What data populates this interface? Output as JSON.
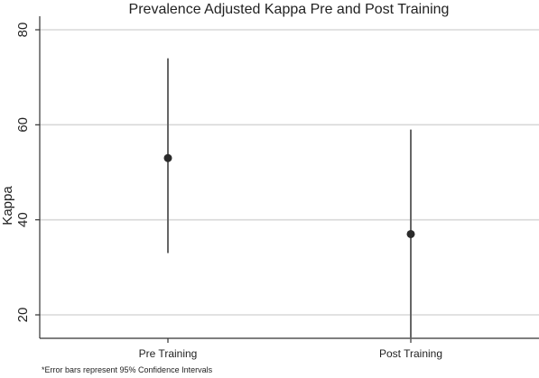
{
  "chart_data": {
    "type": "scatter",
    "title": "Prevalence Adjusted Kappa Pre and Post Training",
    "xlabel": "",
    "ylabel": "Kappa",
    "categories": [
      "Pre Training",
      "Post Training"
    ],
    "values": [
      53,
      37
    ],
    "error_low": [
      33,
      15
    ],
    "error_high": [
      74,
      59
    ],
    "yticks": [
      20,
      40,
      60,
      80
    ],
    "ylim": [
      15,
      80
    ],
    "grid": true,
    "note": "*Error bars represent 95% Confidence Intervals"
  },
  "colors": {
    "point": "#2b2b2b",
    "errbar": "#666666",
    "grid": "#d8d8d8"
  }
}
